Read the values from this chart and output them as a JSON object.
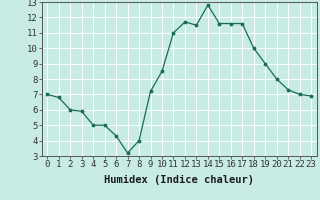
{
  "x": [
    0,
    1,
    2,
    3,
    4,
    5,
    6,
    7,
    8,
    9,
    10,
    11,
    12,
    13,
    14,
    15,
    16,
    17,
    18,
    19,
    20,
    21,
    22,
    23
  ],
  "y": [
    7.0,
    6.8,
    6.0,
    5.9,
    5.0,
    5.0,
    4.3,
    3.2,
    4.0,
    7.2,
    8.5,
    11.0,
    11.7,
    11.5,
    12.8,
    11.6,
    11.6,
    11.6,
    10.0,
    9.0,
    8.0,
    7.3,
    7.0,
    6.9
  ],
  "xlabel": "Humidex (Indice chaleur)",
  "ylim": [
    3,
    13
  ],
  "xlim": [
    -0.5,
    23.5
  ],
  "yticks": [
    3,
    4,
    5,
    6,
    7,
    8,
    9,
    10,
    11,
    12,
    13
  ],
  "xticks": [
    0,
    1,
    2,
    3,
    4,
    5,
    6,
    7,
    8,
    9,
    10,
    11,
    12,
    13,
    14,
    15,
    16,
    17,
    18,
    19,
    20,
    21,
    22,
    23
  ],
  "line_color": "#1a6b5a",
  "marker_color": "#1a6b5a",
  "bg_color": "#c8ece4",
  "grid_color": "#b0d8d0",
  "tick_fontsize": 6.5,
  "label_fontsize": 7.5
}
